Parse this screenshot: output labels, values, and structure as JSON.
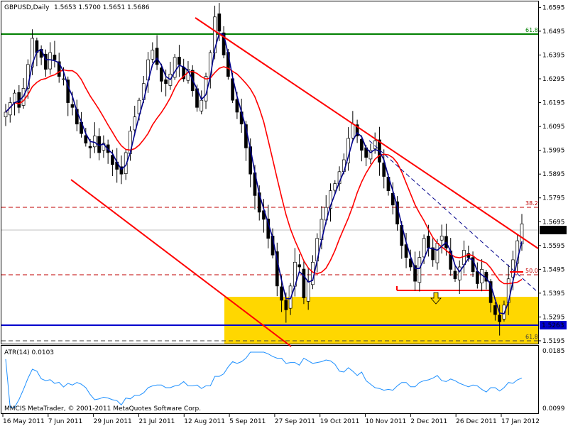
{
  "header": {
    "symbol": "GBPUSD,Daily",
    "ohlc": "1.5653 1.5700 1.5651 1.5686"
  },
  "indicator": {
    "label": "ATR(14) 0.0103",
    "copyright": "MMCIS MetaTrader, © 2001-2011 MetaQuotes Software Corp.",
    "scale_top": "0.0185",
    "scale_bottom": "0.0099",
    "color": "#1e90ff"
  },
  "price_axis": {
    "ticks": [
      "1.6595",
      "1.6495",
      "1.6395",
      "1.6295",
      "1.6195",
      "1.6095",
      "1.5995",
      "1.5895",
      "1.5795",
      "1.5695",
      "1.5595",
      "1.5495",
      "1.5395",
      "1.5295",
      "1.5195"
    ],
    "current_price": "1.5686",
    "blue_line_price": "1.5263",
    "ylim": [
      1.5183,
      1.662
    ]
  },
  "date_axis": {
    "labels": [
      "16 May 2011",
      "7 Jun 2011",
      "29 Jun 2011",
      "21 Jul 2011",
      "12 Aug 2011",
      "5 Sep 2011",
      "27 Sep 2011",
      "19 Oct 2011",
      "10 Nov 2011",
      "2 Dec 2011",
      "26 Dec 2011",
      "17 Jan 2012"
    ]
  },
  "fib_labels": {
    "top": "61.8",
    "mid": "38.2",
    "fifty": "50.0",
    "bottom": "61.8"
  },
  "colors": {
    "trendline": "#ff0000",
    "fib_top": "#008000",
    "fib_dashed": "#c00000",
    "ma_fast": "#00008b",
    "ma_slow": "#ff0000",
    "support_zone": "#ffd700",
    "horizontal_support": "#0000cd",
    "candle": "#000000"
  },
  "chart_data": {
    "type": "candlestick",
    "title": "GBPUSD,Daily",
    "ylim": [
      1.5183,
      1.662
    ],
    "levels": [
      {
        "name": "61.8",
        "value": 1.6535
      },
      {
        "name": "38.2",
        "value": 1.5775
      },
      {
        "name": "50.0",
        "value": 1.5505
      },
      {
        "name": "61.8",
        "value": 1.5195
      },
      {
        "name": "support",
        "value": 1.5263
      },
      {
        "name": "close",
        "value": 1.5686
      }
    ],
    "close_series": [
      1.6155,
      1.6195,
      1.6235,
      1.6175,
      1.6255,
      1.6355,
      1.6465,
      1.6405,
      1.6385,
      1.6335,
      1.6405,
      1.6375,
      1.6305,
      1.6295,
      1.6195,
      1.6175,
      1.6105,
      1.6065,
      1.6025,
      1.6005,
      1.6055,
      1.5985,
      1.6025,
      1.5985,
      1.5935,
      1.5915,
      1.5895,
      1.5985,
      1.6075,
      1.6135,
      1.6205,
      1.6275,
      1.6375,
      1.6415,
      1.6355,
      1.6285,
      1.6275,
      1.6315,
      1.6385,
      1.6355,
      1.6295,
      1.6335,
      1.6245,
      1.6175,
      1.6205,
      1.6305,
      1.6405,
      1.6555,
      1.6495,
      1.6395,
      1.6305,
      1.6205,
      1.6155,
      1.6105,
      1.6005,
      1.5895,
      1.5805,
      1.5735,
      1.5705,
      1.5625,
      1.5555,
      1.5425,
      1.5365,
      1.5325,
      1.5425,
      1.5525,
      1.5505,
      1.5375,
      1.5445,
      1.5525,
      1.5625,
      1.5705,
      1.5755,
      1.5825,
      1.5855,
      1.5905,
      1.5955,
      1.6045,
      1.6105,
      1.6055,
      1.5995,
      1.5965,
      1.5995,
      1.6035,
      1.5945,
      1.5885,
      1.5825,
      1.5765,
      1.5685,
      1.5595,
      1.5545,
      1.5505,
      1.5445,
      1.5545,
      1.5625,
      1.5585,
      1.5535,
      1.5605,
      1.5635,
      1.5585,
      1.5495,
      1.5455,
      1.5505,
      1.5575,
      1.5545,
      1.5485,
      1.5435,
      1.5495,
      1.5445,
      1.5355,
      1.5305,
      1.5275,
      1.5345,
      1.5455,
      1.5535,
      1.5615,
      1.5686
    ]
  }
}
